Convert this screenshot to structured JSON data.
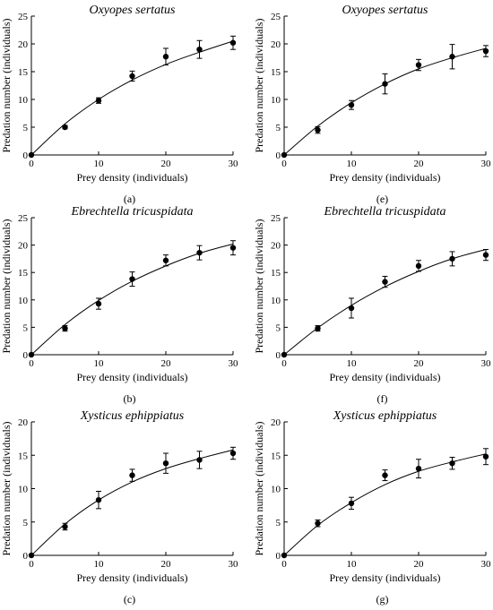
{
  "chart_data": [
    {
      "panel": "(a)",
      "type": "scatter",
      "title": "Oxyopes sertatus",
      "xlabel": "Prey density (individuals)",
      "ylabel": "Predation number (individuals)",
      "xlim": [
        0,
        30
      ],
      "ylim": [
        0,
        25
      ],
      "x_ticks": [
        "0",
        "10",
        "20",
        "30"
      ],
      "y_ticks": [
        "0",
        "5",
        "10",
        "15",
        "20",
        "25"
      ],
      "x": [
        0,
        5,
        10,
        15,
        20,
        25,
        30
      ],
      "y": [
        0,
        5.0,
        9.8,
        14.2,
        17.7,
        19.0,
        20.2
      ],
      "error": [
        0,
        0.3,
        0.5,
        0.9,
        1.5,
        1.6,
        1.2
      ],
      "fit_curve": [
        [
          0,
          0
        ],
        [
          5,
          5.6
        ],
        [
          10,
          10.0
        ],
        [
          15,
          13.5
        ],
        [
          20,
          16.3
        ],
        [
          25,
          18.5
        ],
        [
          30,
          20.5
        ]
      ]
    },
    {
      "panel": "(e)",
      "type": "scatter",
      "title": "Oxyopes sertatus",
      "xlabel": "Prey density (individuals)",
      "ylabel": "Predation number (individuals)",
      "xlim": [
        0,
        30
      ],
      "ylim": [
        0,
        25
      ],
      "x_ticks": [
        "0",
        "10",
        "20",
        "30"
      ],
      "y_ticks": [
        "0",
        "5",
        "10",
        "15",
        "20",
        "25"
      ],
      "x": [
        0,
        5,
        10,
        15,
        20,
        25,
        30
      ],
      "y": [
        0,
        4.5,
        9.0,
        12.8,
        16.2,
        17.7,
        18.7
      ],
      "error": [
        0,
        0.6,
        0.8,
        1.8,
        1.0,
        2.2,
        1.0
      ],
      "fit_curve": [
        [
          0,
          0
        ],
        [
          5,
          5.2
        ],
        [
          10,
          9.4
        ],
        [
          15,
          12.8
        ],
        [
          20,
          15.5
        ],
        [
          25,
          17.5
        ],
        [
          30,
          19.2
        ]
      ]
    },
    {
      "panel": "(b)",
      "type": "scatter",
      "title": "Ebrechtella tricuspidata",
      "xlabel": "Prey density (individuals)",
      "ylabel": "Predation number (individuals)",
      "xlim": [
        0,
        30
      ],
      "ylim": [
        0,
        25
      ],
      "x_ticks": [
        "0",
        "10",
        "20",
        "30"
      ],
      "y_ticks": [
        "0",
        "5",
        "10",
        "15",
        "20",
        "25"
      ],
      "x": [
        0,
        5,
        10,
        15,
        20,
        25,
        30
      ],
      "y": [
        0,
        4.8,
        9.3,
        13.8,
        17.2,
        18.6,
        19.5
      ],
      "error": [
        0,
        0.5,
        1.0,
        1.3,
        1.0,
        1.3,
        1.3
      ],
      "fit_curve": [
        [
          0,
          0
        ],
        [
          5,
          5.5
        ],
        [
          10,
          9.9
        ],
        [
          15,
          13.4
        ],
        [
          20,
          16.2
        ],
        [
          25,
          18.5
        ],
        [
          30,
          20.2
        ]
      ]
    },
    {
      "panel": "(f)",
      "type": "scatter",
      "title": "Ebrechtella tricuspidata",
      "xlabel": "Prey density (individuals)",
      "ylabel": "Predation number (individuals)",
      "xlim": [
        0,
        30
      ],
      "ylim": [
        0,
        25
      ],
      "x_ticks": [
        "0",
        "10",
        "20",
        "30"
      ],
      "y_ticks": [
        "0",
        "5",
        "10",
        "15",
        "20",
        "25"
      ],
      "x": [
        0,
        5,
        10,
        15,
        20,
        25,
        30
      ],
      "y": [
        0,
        4.8,
        8.5,
        13.3,
        16.2,
        17.5,
        18.2
      ],
      "error": [
        0,
        0.5,
        1.8,
        1.0,
        1.0,
        1.3,
        1.0
      ],
      "fit_curve": [
        [
          0,
          0
        ],
        [
          5,
          4.9
        ],
        [
          10,
          9.0
        ],
        [
          15,
          12.4
        ],
        [
          20,
          15.2
        ],
        [
          25,
          17.5
        ],
        [
          30,
          19.2
        ]
      ]
    },
    {
      "panel": "(c)",
      "type": "scatter",
      "title": "Xysticus ephippiatus",
      "xlabel": "Prey density (individuals)",
      "ylabel": "Predation number (individuals)",
      "xlim": [
        0,
        30
      ],
      "ylim": [
        0,
        20
      ],
      "x_ticks": [
        "0",
        "10",
        "20",
        "30"
      ],
      "y_ticks": [
        "0",
        "5",
        "10",
        "15",
        "20"
      ],
      "x": [
        0,
        5,
        10,
        15,
        20,
        25,
        30
      ],
      "y": [
        0,
        4.3,
        8.3,
        12.0,
        13.8,
        14.3,
        15.3
      ],
      "error": [
        0,
        0.5,
        1.3,
        0.9,
        1.5,
        1.3,
        0.9
      ],
      "fit_curve": [
        [
          0,
          0
        ],
        [
          5,
          4.7
        ],
        [
          10,
          8.3
        ],
        [
          15,
          11.0
        ],
        [
          20,
          13.0
        ],
        [
          25,
          14.5
        ],
        [
          30,
          15.8
        ]
      ]
    },
    {
      "panel": "(g)",
      "type": "scatter",
      "title": "Xysticus ephippiatus",
      "xlabel": "Prey density (individuals)",
      "ylabel": "Predation number (individuals)",
      "xlim": [
        0,
        30
      ],
      "ylim": [
        0,
        20
      ],
      "x_ticks": [
        "0",
        "10",
        "20",
        "30"
      ],
      "y_ticks": [
        "0",
        "5",
        "10",
        "15",
        "20"
      ],
      "x": [
        0,
        5,
        10,
        15,
        20,
        25,
        30
      ],
      "y": [
        0,
        4.8,
        7.8,
        12.0,
        13.0,
        13.8,
        14.8
      ],
      "error": [
        0,
        0.5,
        0.9,
        0.8,
        1.4,
        0.9,
        1.2
      ],
      "fit_curve": [
        [
          0,
          0
        ],
        [
          5,
          4.5
        ],
        [
          10,
          7.9
        ],
        [
          15,
          10.6
        ],
        [
          20,
          12.6
        ],
        [
          25,
          14.0
        ],
        [
          30,
          15.2
        ]
      ]
    }
  ]
}
